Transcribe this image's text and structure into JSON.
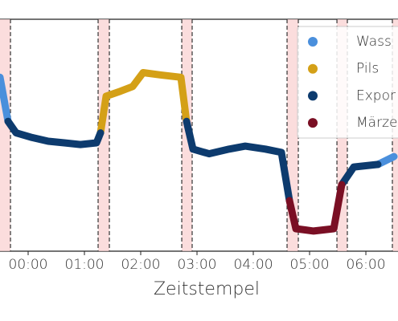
{
  "chart_data": {
    "type": "line",
    "x_label": "Zeitstempel",
    "x": [
      -0.5,
      -0.357,
      -0.214,
      0.071,
      0.357,
      0.643,
      0.929,
      1.214,
      1.286,
      1.386,
      1.643,
      1.857,
      2.043,
      2.357,
      2.714,
      2.814,
      2.929,
      3.214,
      3.571,
      3.857,
      4.214,
      4.5,
      4.643,
      4.757,
      5.071,
      5.429,
      5.571,
      5.786,
      6.214,
      6.5
    ],
    "series": [
      {
        "name": "Wass",
        "color": "#4a8fdc",
        "values": [
          75,
          56,
          null,
          null,
          null,
          null,
          null,
          null,
          null,
          null,
          null,
          null,
          null,
          null,
          null,
          null,
          null,
          null,
          null,
          null,
          null,
          null,
          null,
          null,
          null,
          null,
          null,
          null,
          37.4,
          40.8
        ]
      },
      {
        "name": "Pils",
        "color": "#d4a017",
        "values": [
          null,
          null,
          null,
          null,
          null,
          null,
          null,
          null,
          51,
          66.8,
          69,
          71,
          77,
          76,
          75,
          56,
          null,
          null,
          null,
          null,
          null,
          null,
          null,
          null,
          null,
          null,
          null,
          null,
          null,
          null
        ]
      },
      {
        "name": "Expor",
        "color": "#0d3b6e",
        "values": [
          null,
          56,
          51,
          49,
          47.4,
          46.7,
          46,
          46.7,
          51,
          null,
          null,
          null,
          null,
          null,
          null,
          56,
          44,
          42,
          44,
          45.3,
          44,
          42.6,
          21.8,
          null,
          null,
          null,
          28.7,
          36.3,
          37.4,
          null
        ]
      },
      {
        "name": "Märze",
        "color": "#7a0f24",
        "values": [
          null,
          null,
          null,
          null,
          null,
          null,
          null,
          null,
          null,
          null,
          null,
          null,
          null,
          null,
          null,
          null,
          null,
          null,
          null,
          null,
          null,
          null,
          21.8,
          9.7,
          8.7,
          9.7,
          28.7,
          null,
          null,
          null
        ]
      }
    ],
    "spans": [
      [
        -0.5,
        -0.314
      ],
      [
        1.243,
        1.443
      ],
      [
        2.729,
        2.914
      ],
      [
        4.6,
        4.8
      ],
      [
        5.486,
        5.671
      ],
      [
        6.471,
        6.571
      ]
    ],
    "xlim": [
      -0.5,
      6.571
    ],
    "ylim": [
      0,
      100
    ],
    "xticks": [
      {
        "value": 0,
        "label": "00:00"
      },
      {
        "value": 1,
        "label": "01:00"
      },
      {
        "value": 2,
        "label": "02:00"
      },
      {
        "value": 3,
        "label": "03:00"
      },
      {
        "value": 4,
        "label": "04:00"
      },
      {
        "value": 5,
        "label": "05:00"
      },
      {
        "value": 6,
        "label": "06:00"
      }
    ]
  }
}
